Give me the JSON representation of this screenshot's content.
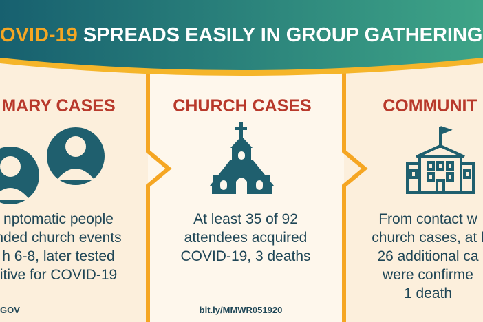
{
  "header": {
    "highlight": "OVID-19",
    "title": "SPREADS EASILY IN GROUP GATHERING"
  },
  "panels": [
    {
      "heading": "MARY CASES",
      "lines": [
        "nptomatic people",
        "nded church events",
        "h 6-8, later tested",
        "itive for COVID-19"
      ],
      "footer": "GOV"
    },
    {
      "heading": "CHURCH CASES",
      "lines": [
        "At least 35 of 92",
        "attendees acquired",
        "COVID-19, 3 deaths"
      ],
      "footer": "bit.ly/MMWR051920"
    },
    {
      "heading": "COMMUNIT",
      "lines": [
        "From contact w",
        "church cases, at l",
        "26 additional ca",
        "were confirme",
        "1 death"
      ],
      "footer": null
    }
  ]
}
